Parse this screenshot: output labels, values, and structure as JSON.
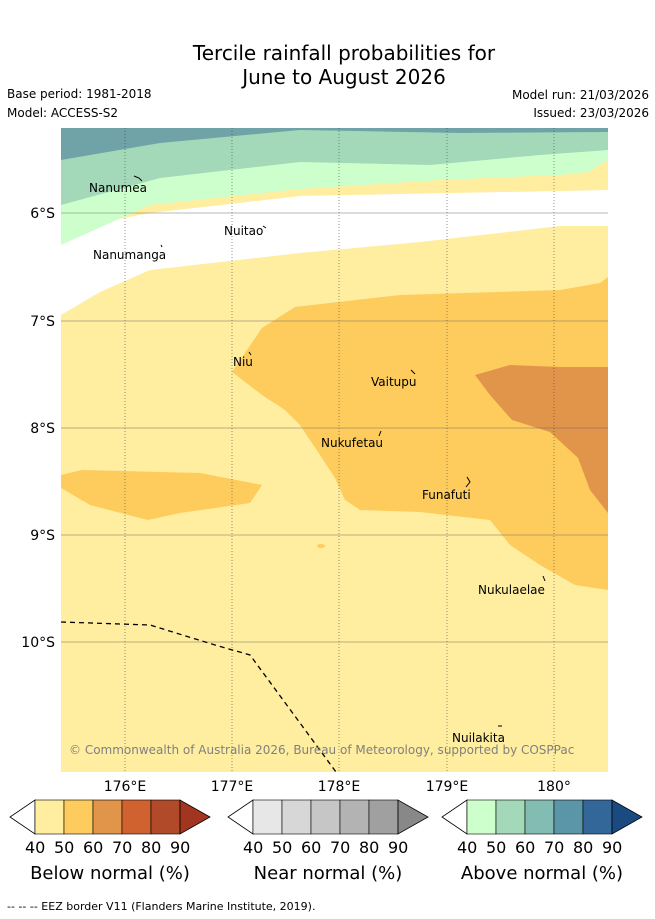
{
  "title_line1": "Tercile rainfall probabilities for",
  "title_line2": "June to August 2026",
  "base_period": "Base period: 1981-2018",
  "model": "Model: ACCESS-S2",
  "model_run": "Model run: 21/03/2026",
  "issued": "Issued: 23/03/2026",
  "copyright": "© Commonwealth of Australia 2026, Bureau of Meteorology, supported by COSPPac",
  "lat_labels": [
    "6°S",
    "7°S",
    "8°S",
    "9°S",
    "10°S"
  ],
  "lon_labels": [
    "176°E",
    "177°E",
    "178°E",
    "179°E",
    "180°"
  ],
  "places": {
    "nanumea": "Nanumea",
    "nuitao": "Nuitao",
    "nanumanga": "Nanumanga",
    "niu": "Niu",
    "vaitupu": "Vaitupu",
    "nukufetau": "Nukufetau",
    "funafuti": "Funafuti",
    "nukulaelae": "Nukulaelae",
    "nuilakita": "Nuilakita"
  },
  "colorbars": {
    "below": {
      "label": "Below normal (%)",
      "ticks": [
        "40",
        "50",
        "60",
        "70",
        "80",
        "90"
      ],
      "colors": [
        "#ffeda0",
        "#fecc5c",
        "#e0954b",
        "#d0622f",
        "#b04a28",
        "#a2351f"
      ]
    },
    "near": {
      "label": "Near normal (%)",
      "ticks": [
        "40",
        "50",
        "60",
        "70",
        "80",
        "90"
      ],
      "colors": [
        "#e7e7e7",
        "#d7d7d7",
        "#c6c6c6",
        "#b3b3b3",
        "#a0a0a0",
        "#888888"
      ]
    },
    "above": {
      "label": "Above normal (%)",
      "ticks": [
        "40",
        "50",
        "60",
        "70",
        "80",
        "90"
      ],
      "colors": [
        "#ccffcc",
        "#a3d9b8",
        "#83bcb2",
        "#5b95a8",
        "#336699",
        "#1a4a80"
      ]
    }
  },
  "footnote": "--  --  -- EEZ border V11 (Flanders Marine Institute, 2019)."
}
